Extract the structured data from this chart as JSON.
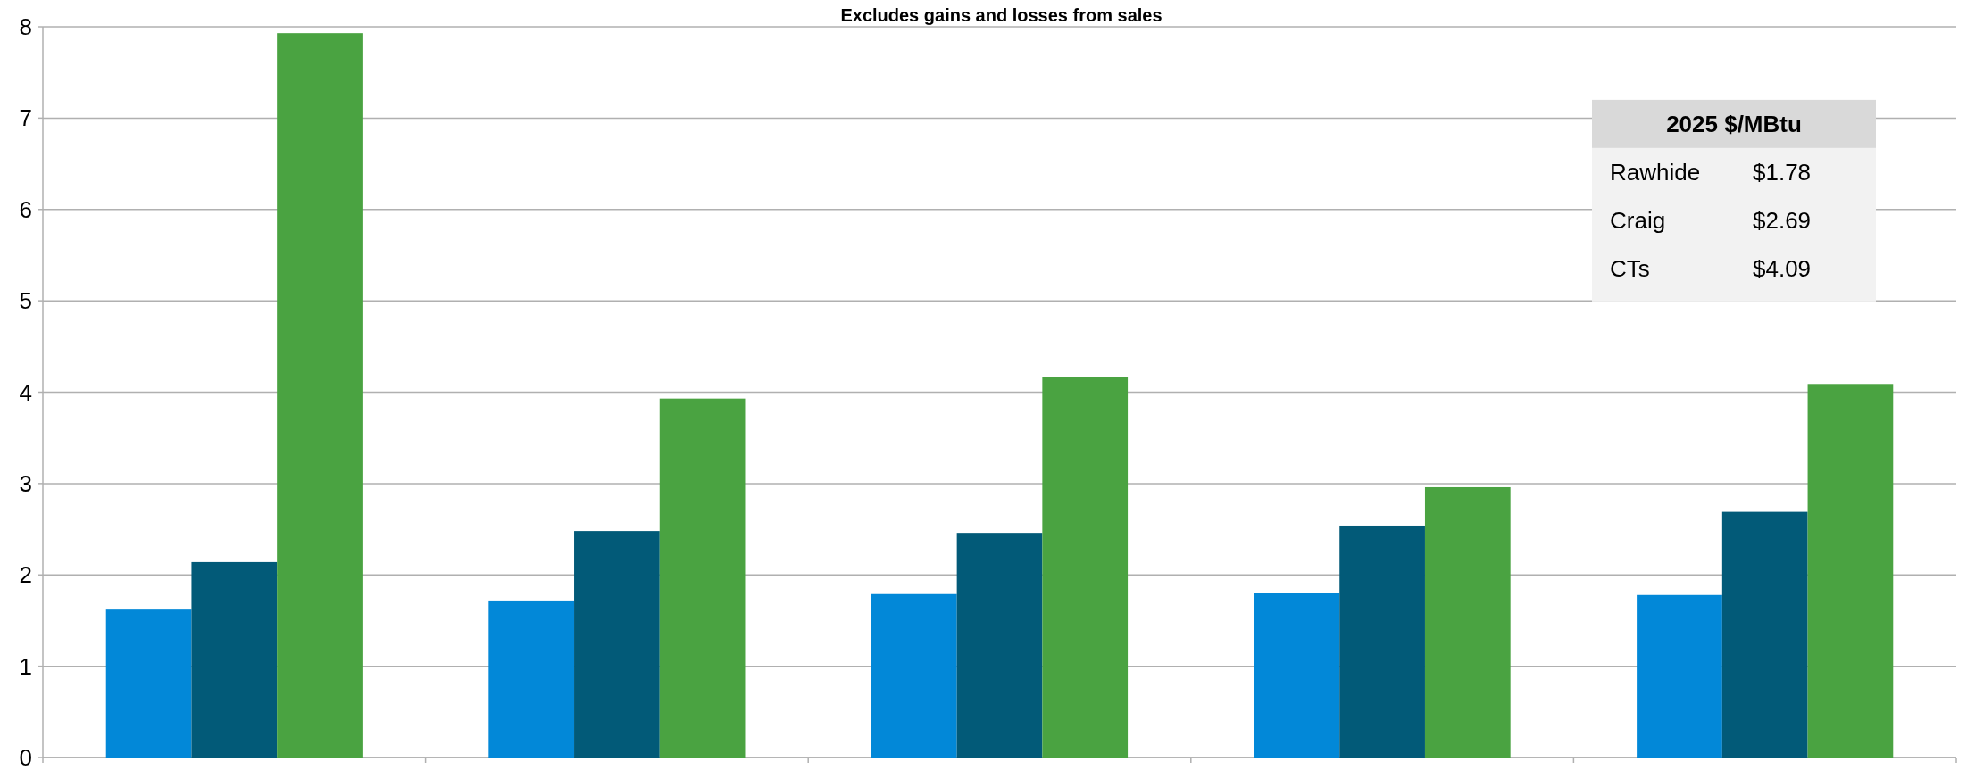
{
  "chart_data": {
    "type": "bar",
    "title": "Excludes gains and losses from sales",
    "categories": [
      null,
      null,
      null,
      null,
      null
    ],
    "series": [
      {
        "color": "#0288d8",
        "values": [
          1.62,
          1.72,
          1.79,
          1.8,
          1.78
        ]
      },
      {
        "color": "#025a78",
        "values": [
          2.14,
          2.48,
          2.46,
          2.54,
          2.69
        ]
      },
      {
        "color": "#4aa341",
        "values": [
          7.93,
          3.93,
          4.17,
          2.96,
          4.09
        ]
      }
    ],
    "annotations": [
      "2025 $/MBtu",
      "Rawhide",
      "$1.78",
      "Craig",
      "$2.69",
      "CTs",
      "$4.09"
    ],
    "ylim": [
      0,
      8
    ],
    "yticks": [
      0,
      1,
      2,
      3,
      4,
      5,
      6,
      7,
      8
    ],
    "grid": "y"
  }
}
